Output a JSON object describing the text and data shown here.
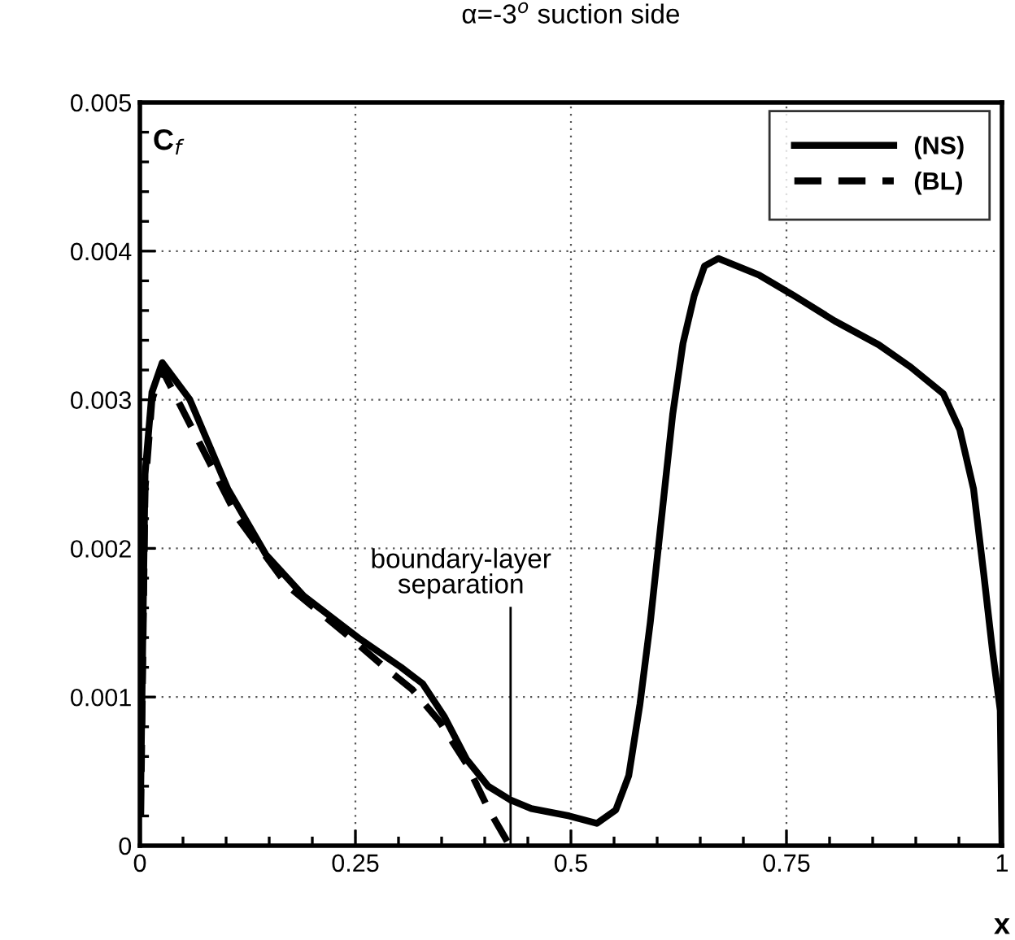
{
  "chart_data": {
    "type": "line",
    "title": "α=-3$^{o}$ suction side",
    "xlabel": "x",
    "ylabel": "C$_{f}$",
    "xlim": [
      0,
      1
    ],
    "ylim": [
      0,
      0.005
    ],
    "xticks": [
      0,
      0.25,
      0.5,
      0.75,
      1
    ],
    "yticks": [
      0,
      0.001,
      0.002,
      0.003,
      0.004,
      0.005
    ],
    "grid": true,
    "legend": "top right",
    "series": [
      {
        "name": "(NS)",
        "color": "#000000",
        "line_style": "solid",
        "x": [
          0.001,
          0.006,
          0.014,
          0.026,
          0.058,
          0.102,
          0.146,
          0.19,
          0.253,
          0.303,
          0.328,
          0.353,
          0.379,
          0.404,
          0.429,
          0.454,
          0.498,
          0.53,
          0.552,
          0.567,
          0.58,
          0.592,
          0.605,
          0.618,
          0.63,
          0.643,
          0.655,
          0.671,
          0.718,
          0.756,
          0.806,
          0.857,
          0.894,
          0.932,
          0.951,
          0.967,
          0.979,
          0.989,
          0.998,
          1.0
        ],
        "values": [
          0.0004,
          0.0025,
          0.00305,
          0.00325,
          0.003,
          0.0024,
          0.00196,
          0.00168,
          0.0014,
          0.0012,
          0.00109,
          0.00087,
          0.00058,
          0.0004,
          0.00031,
          0.00025,
          0.0002,
          0.00015,
          0.00024,
          0.00047,
          0.00095,
          0.0015,
          0.0022,
          0.0029,
          0.00338,
          0.0037,
          0.0039,
          0.00395,
          0.00384,
          0.00371,
          0.00353,
          0.00337,
          0.00322,
          0.00304,
          0.0028,
          0.0024,
          0.00182,
          0.00131,
          0.00091,
          0.0
        ]
      },
      {
        "name": "(BL)",
        "color": "#000000",
        "line_style": "dashed",
        "x": [
          0.001,
          0.006,
          0.014,
          0.026,
          0.07,
          0.114,
          0.171,
          0.24,
          0.284,
          0.316,
          0.347,
          0.379,
          0.404,
          0.429
        ],
        "values": [
          0.0002,
          0.0024,
          0.003,
          0.0032,
          0.0027,
          0.0022,
          0.00175,
          0.00142,
          0.0012,
          0.00105,
          0.00084,
          0.00055,
          0.00025,
          0.0
        ]
      }
    ],
    "ref_lines": [
      {
        "axis": "x",
        "value": 0.43,
        "label": "boundary-layer\nseparation",
        "color": "#000000",
        "line_style": "solid"
      }
    ]
  }
}
